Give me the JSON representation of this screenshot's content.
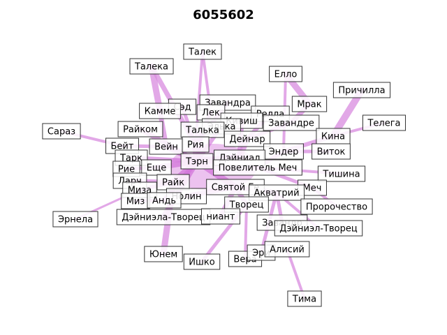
{
  "title": "6055602",
  "colors": {
    "edge": "#d98ce0",
    "edge_core": "#c84fd0",
    "node_fill": "#ffffff",
    "node_stroke": "#333333"
  },
  "nodes": [
    {
      "id": "n1",
      "label": "Талек"
    },
    {
      "id": "n2",
      "label": "Талека"
    },
    {
      "id": "n3",
      "label": "Елло"
    },
    {
      "id": "n4",
      "label": "Причилла"
    },
    {
      "id": "n5",
      "label": "Мрак"
    },
    {
      "id": "n6",
      "label": "Телега"
    },
    {
      "id": "n7",
      "label": "Сараз"
    },
    {
      "id": "n8",
      "label": "Завандра"
    },
    {
      "id": "n9",
      "label": "Сэд"
    },
    {
      "id": "n10",
      "label": "Камме"
    },
    {
      "id": "n11",
      "label": "Лек"
    },
    {
      "id": "n12",
      "label": "Релла"
    },
    {
      "id": "n13",
      "label": "Завандре"
    },
    {
      "id": "n14",
      "label": "Кивиш"
    },
    {
      "id": "n15",
      "label": "Элька"
    },
    {
      "id": "n16",
      "label": "Райком"
    },
    {
      "id": "n17",
      "label": "Талька"
    },
    {
      "id": "n18",
      "label": "Кина"
    },
    {
      "id": "n19",
      "label": "Дейнар"
    },
    {
      "id": "n20",
      "label": "Бейт"
    },
    {
      "id": "n21",
      "label": "Вейн"
    },
    {
      "id": "n22",
      "label": "Рия"
    },
    {
      "id": "n23",
      "label": "Виток"
    },
    {
      "id": "n24",
      "label": "Эндер"
    },
    {
      "id": "n25",
      "label": "Тарк"
    },
    {
      "id": "n26",
      "label": "Тэрн"
    },
    {
      "id": "n27",
      "label": "Дэйниал"
    },
    {
      "id": "n28",
      "label": "Рие"
    },
    {
      "id": "n29",
      "label": "Еще"
    },
    {
      "id": "n30",
      "label": "Повелитель Меч"
    },
    {
      "id": "n31",
      "label": "Тишина"
    },
    {
      "id": "n32",
      "label": "Ларч"
    },
    {
      "id": "n33",
      "label": "Райк"
    },
    {
      "id": "n34",
      "label": "Святой Ге"
    },
    {
      "id": "n35",
      "label": "Меч"
    },
    {
      "id": "n36",
      "label": "Миза"
    },
    {
      "id": "n37",
      "label": "Акватрий"
    },
    {
      "id": "n38",
      "label": "Нолин"
    },
    {
      "id": "n39",
      "label": "Миз"
    },
    {
      "id": "n40",
      "label": "Андь"
    },
    {
      "id": "n41",
      "label": "Творец"
    },
    {
      "id": "n42",
      "label": "Пророчество"
    },
    {
      "id": "n43",
      "label": "Эрнела"
    },
    {
      "id": "n44",
      "label": "Дэйниэла-Творец"
    },
    {
      "id": "n45",
      "label": "ниант"
    },
    {
      "id": "n46",
      "label": "Завандр"
    },
    {
      "id": "n47",
      "label": "Дэйниэл-Творец"
    },
    {
      "id": "n48",
      "label": "Юнем"
    },
    {
      "id": "n49",
      "label": "Ишко"
    },
    {
      "id": "n50",
      "label": "Вера"
    },
    {
      "id": "n51",
      "label": "Эри"
    },
    {
      "id": "n52",
      "label": "Алисий"
    },
    {
      "id": "n53",
      "label": "Тима"
    }
  ]
}
